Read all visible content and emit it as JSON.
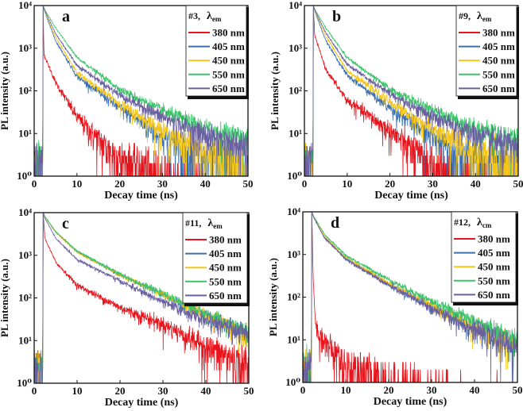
{
  "chart_data": [
    {
      "type": "line",
      "panel": "a",
      "yscale": "log",
      "xlabel": "Decay time (ns)",
      "ylabel": "PL intensity (a.u.)",
      "xlim": [
        0,
        50
      ],
      "ylim": [
        1,
        10000
      ],
      "xticks": [
        0,
        10,
        20,
        30,
        40,
        50
      ],
      "yticks": [
        1,
        10,
        100,
        1000,
        10000
      ],
      "ytick_labels": [
        "10⁰",
        "10¹",
        "10²",
        "10³",
        "10⁴"
      ],
      "legend": {
        "title": "#3,",
        "symbol": "λ",
        "subscript": "em",
        "position": "top-right"
      },
      "series": [
        {
          "name": "380 nm",
          "color": "#e8141c",
          "x": [
            2.1,
            2.3,
            5,
            10,
            15,
            20,
            30,
            40
          ],
          "y": [
            10000,
            700,
            160,
            25,
            8,
            3,
            1.4,
            0.8
          ]
        },
        {
          "name": "405 nm",
          "color": "#3a6fb0",
          "x": [
            2.1,
            2.5,
            5,
            10,
            20,
            30,
            40,
            50
          ],
          "y": [
            10000,
            7000,
            1500,
            220,
            40,
            9,
            3,
            1.5
          ]
        },
        {
          "name": "450 nm",
          "color": "#f5c518",
          "x": [
            2.1,
            2.5,
            5,
            10,
            20,
            30,
            40,
            50
          ],
          "y": [
            10000,
            7200,
            1800,
            270,
            50,
            12,
            4,
            2
          ]
        },
        {
          "name": "550 nm",
          "color": "#3cc36a",
          "x": [
            2.1,
            2.5,
            5,
            10,
            20,
            30,
            40,
            50
          ],
          "y": [
            10000,
            8000,
            3000,
            600,
            110,
            35,
            14,
            8
          ]
        },
        {
          "name": "650 nm",
          "color": "#6a5fa0",
          "x": [
            2.1,
            2.5,
            5,
            10,
            20,
            30,
            40,
            50
          ],
          "y": [
            10000,
            7600,
            2200,
            400,
            80,
            25,
            10,
            5
          ]
        }
      ]
    },
    {
      "type": "line",
      "panel": "b",
      "yscale": "log",
      "xlabel": "Decay time (ns)",
      "ylabel": "PL intensity (a.u.)",
      "xlim": [
        0,
        50
      ],
      "ylim": [
        1,
        10000
      ],
      "xticks": [
        0,
        10,
        20,
        30,
        40,
        50
      ],
      "yticks": [
        1,
        10,
        100,
        1000,
        10000
      ],
      "ytick_labels": [
        "10⁰",
        "10¹",
        "10²",
        "10³",
        "10⁴"
      ],
      "legend": {
        "title": "#9,",
        "symbol": "λ",
        "subscript": "em",
        "position": "top-right"
      },
      "series": [
        {
          "name": "380 nm",
          "color": "#e8141c",
          "x": [
            2.1,
            2.4,
            5,
            10,
            20,
            25,
            30,
            40
          ],
          "y": [
            10000,
            2000,
            320,
            60,
            12,
            5,
            2,
            0.8
          ]
        },
        {
          "name": "405 nm",
          "color": "#3a6fb0",
          "x": [
            2.1,
            2.5,
            5,
            10,
            20,
            30,
            40,
            50
          ],
          "y": [
            10000,
            7000,
            1500,
            230,
            40,
            9,
            3,
            1.5
          ]
        },
        {
          "name": "450 nm",
          "color": "#f5c518",
          "x": [
            2.1,
            2.5,
            5,
            10,
            20,
            30,
            40,
            50
          ],
          "y": [
            10000,
            7300,
            1900,
            300,
            55,
            13,
            4,
            2
          ]
        },
        {
          "name": "550 nm",
          "color": "#3cc36a",
          "x": [
            2.1,
            2.5,
            5,
            10,
            20,
            30,
            40,
            50
          ],
          "y": [
            10000,
            8000,
            3000,
            600,
            110,
            35,
            14,
            8
          ]
        },
        {
          "name": "650 nm",
          "color": "#6a5fa0",
          "x": [
            2.1,
            2.5,
            5,
            10,
            20,
            30,
            40,
            50
          ],
          "y": [
            10000,
            7600,
            2300,
            420,
            85,
            25,
            10,
            5
          ]
        }
      ]
    },
    {
      "type": "line",
      "panel": "c",
      "yscale": "log",
      "xlabel": "Decay time (ns)",
      "ylabel": "PL intensity (a.u.)",
      "xlim": [
        0,
        50
      ],
      "ylim": [
        1,
        10000
      ],
      "xticks": [
        0,
        10,
        20,
        30,
        40,
        50
      ],
      "yticks": [
        1,
        10,
        100,
        1000,
        10000
      ],
      "ytick_labels": [
        "10⁰",
        "10¹",
        "10²",
        "10³",
        "10⁴"
      ],
      "legend": {
        "title": "#11,",
        "symbol": "λ",
        "subscript": "em",
        "position": "top-right"
      },
      "series": [
        {
          "name": "380 nm",
          "color": "#e8141c",
          "x": [
            2.1,
            2.5,
            5,
            10,
            20,
            30,
            40,
            50
          ],
          "y": [
            10000,
            2500,
            700,
            200,
            60,
            25,
            8,
            3
          ]
        },
        {
          "name": "405 nm",
          "color": "#3a6fb0",
          "x": [
            2.1,
            2.5,
            5,
            10,
            20,
            30,
            40,
            50
          ],
          "y": [
            10000,
            8000,
            3500,
            1200,
            350,
            120,
            40,
            15
          ]
        },
        {
          "name": "450 nm",
          "color": "#f5c518",
          "x": [
            2.1,
            2.5,
            5,
            10,
            20,
            30,
            40,
            50
          ],
          "y": [
            10000,
            8000,
            3500,
            1200,
            350,
            120,
            40,
            15
          ]
        },
        {
          "name": "550 nm",
          "color": "#3cc36a",
          "x": [
            2.1,
            2.5,
            5,
            10,
            20,
            30,
            40,
            50
          ],
          "y": [
            10000,
            8200,
            3600,
            1250,
            360,
            125,
            42,
            16
          ]
        },
        {
          "name": "650 nm",
          "color": "#6a5fa0",
          "x": [
            2.1,
            2.5,
            5,
            10,
            20,
            30,
            40,
            50
          ],
          "y": [
            10000,
            7500,
            2500,
            800,
            250,
            80,
            30,
            15
          ]
        }
      ]
    },
    {
      "type": "line",
      "panel": "d",
      "yscale": "log",
      "xlabel": "Decay time (ns)",
      "ylabel": "PL intensity (a.u.)",
      "xlim": [
        0,
        50
      ],
      "ylim": [
        1,
        10000
      ],
      "xticks": [
        0,
        10,
        20,
        30,
        40,
        50
      ],
      "yticks": [
        1,
        10,
        100,
        1000,
        10000
      ],
      "ytick_labels": [
        "10⁰",
        "10¹",
        "10²",
        "10³",
        "10⁴"
      ],
      "legend": {
        "title": "#12,",
        "symbol": "λ",
        "subscript": "cm",
        "position": "top-right"
      },
      "series": [
        {
          "name": "380 nm",
          "color": "#e8141c",
          "x": [
            2.1,
            2.4,
            3,
            5,
            10,
            15,
            20,
            30
          ],
          "y": [
            10000,
            300,
            20,
            10,
            3,
            2,
            1.2,
            0.8
          ]
        },
        {
          "name": "405 nm",
          "color": "#3a6fb0",
          "x": [
            2.1,
            2.5,
            5,
            10,
            20,
            30,
            40,
            50
          ],
          "y": [
            10000,
            7500,
            2500,
            800,
            200,
            60,
            20,
            8
          ]
        },
        {
          "name": "450 nm",
          "color": "#f5c518",
          "x": [
            2.1,
            2.5,
            5,
            10,
            20,
            30,
            40,
            50
          ],
          "y": [
            10000,
            7700,
            2700,
            850,
            210,
            62,
            21,
            8
          ]
        },
        {
          "name": "550 nm",
          "color": "#3cc36a",
          "x": [
            2.1,
            2.5,
            5,
            10,
            20,
            30,
            40,
            50
          ],
          "y": [
            10000,
            8000,
            3000,
            950,
            260,
            80,
            28,
            11
          ]
        },
        {
          "name": "650 nm",
          "color": "#6a5fa0",
          "x": [
            2.1,
            2.5,
            5,
            10,
            20,
            30,
            40,
            50
          ],
          "y": [
            10000,
            7500,
            2500,
            780,
            190,
            55,
            18,
            7
          ]
        }
      ]
    }
  ]
}
